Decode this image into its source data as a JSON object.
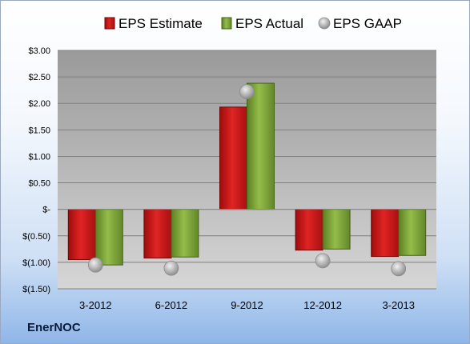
{
  "company": "EnerNOC",
  "chart_data": {
    "type": "bar",
    "categories": [
      "3-2012",
      "6-2012",
      "9-2012",
      "12-2012",
      "3-2013"
    ],
    "series": [
      {
        "name": "EPS Estimate",
        "values": [
          -0.95,
          -0.92,
          1.93,
          -0.77,
          -0.89
        ],
        "color": "#cc1a1a",
        "kind": "bar"
      },
      {
        "name": "EPS Actual",
        "values": [
          -1.05,
          -0.9,
          2.38,
          -0.75,
          -0.87
        ],
        "color": "#7fa83a",
        "kind": "bar"
      },
      {
        "name": "EPS GAAP",
        "values": [
          -1.05,
          -1.11,
          2.22,
          -0.97,
          -1.12
        ],
        "color": "#b8b8b8",
        "kind": "marker"
      }
    ],
    "yticks": [
      {
        "value": 3.0,
        "label": "$3.00"
      },
      {
        "value": 2.5,
        "label": "$2.50"
      },
      {
        "value": 2.0,
        "label": "$2.00"
      },
      {
        "value": 1.5,
        "label": "$1.50"
      },
      {
        "value": 1.0,
        "label": "$1.00"
      },
      {
        "value": 0.5,
        "label": "$0.50"
      },
      {
        "value": 0.0,
        "label": "$-"
      },
      {
        "value": -0.5,
        "label": "$(0.50)"
      },
      {
        "value": -1.0,
        "label": "$(1.00)"
      },
      {
        "value": -1.5,
        "label": "$(1.50)"
      }
    ],
    "ylim": [
      -1.5,
      3.0
    ],
    "grid": true,
    "legend_position": "top"
  }
}
